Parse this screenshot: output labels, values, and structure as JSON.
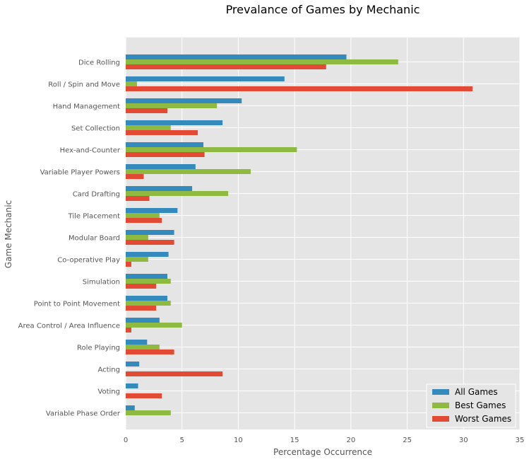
{
  "chart_data": {
    "type": "bar",
    "orientation": "horizontal",
    "title": "Prevalance of Games by Mechanic",
    "xlabel": "Percentage Occurrence",
    "ylabel": "Game Mechanic",
    "xlim": [
      0,
      35
    ],
    "xticks": [
      "0",
      "5",
      "10",
      "15",
      "20",
      "25",
      "30",
      "35"
    ],
    "grid": true,
    "legend_position": "bottom-right",
    "categories": [
      "Dice Rolling",
      "Roll / Spin and Move",
      "Hand Management",
      "Set Collection",
      "Hex-and-Counter",
      "Variable Player Powers",
      "Card Drafting",
      "Tile Placement",
      "Modular Board",
      "Co-operative Play",
      "Simulation",
      "Point to Point Movement",
      "Area Control / Area Influence",
      "Role Playing",
      "Acting",
      "Voting",
      "Variable Phase Order"
    ],
    "series": [
      {
        "name": "All Games",
        "color": "#348ABD",
        "values": [
          19.6,
          14.1,
          10.3,
          8.6,
          6.9,
          6.2,
          5.9,
          4.6,
          4.3,
          3.8,
          3.7,
          3.7,
          3.0,
          1.9,
          1.2,
          1.1,
          0.8
        ]
      },
      {
        "name": "Best Games",
        "color": "#8EBA42",
        "values": [
          24.2,
          1.0,
          8.1,
          4.0,
          15.2,
          11.1,
          9.1,
          3.0,
          2.0,
          2.0,
          4.0,
          4.0,
          5.0,
          3.0,
          0.0,
          0.0,
          4.0
        ]
      },
      {
        "name": "Worst Games",
        "color": "#E24A33",
        "values": [
          17.8,
          30.8,
          3.7,
          6.4,
          7.0,
          1.6,
          2.1,
          3.2,
          4.3,
          0.5,
          2.7,
          2.7,
          0.5,
          4.3,
          8.6,
          3.2,
          0.0
        ]
      }
    ]
  }
}
